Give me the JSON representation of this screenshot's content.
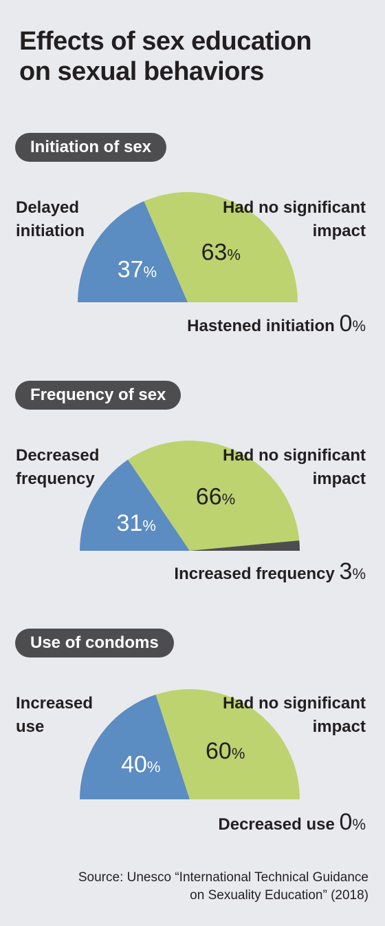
{
  "title_line1": "Effects of sex education",
  "title_line2": "on sexual behaviors",
  "colors": {
    "positive": "#5b8cc2",
    "no_impact": "#bdd370",
    "negative": "#4d4d4f",
    "pill_bg": "#4d4d4f"
  },
  "chart_data": [
    {
      "type": "pie",
      "style": "half-pie",
      "title": "Initiation of sex",
      "slices": [
        {
          "label_line1": "Delayed",
          "label_line2": "initiation",
          "value": 37,
          "value_label": "37",
          "color": "#5b8cc2"
        },
        {
          "label_line1": "Had no significant",
          "label_line2": "impact",
          "value": 63,
          "value_label": "63",
          "color": "#bdd370"
        },
        {
          "label_line1": "Hastened initiation",
          "label_line2": "",
          "value": 0,
          "value_label": "0",
          "color": "#4d4d4f"
        }
      ]
    },
    {
      "type": "pie",
      "style": "half-pie",
      "title": "Frequency of sex",
      "slices": [
        {
          "label_line1": "Decreased",
          "label_line2": "frequency",
          "value": 31,
          "value_label": "31",
          "color": "#5b8cc2"
        },
        {
          "label_line1": "Had no significant",
          "label_line2": "impact",
          "value": 66,
          "value_label": "66",
          "color": "#bdd370"
        },
        {
          "label_line1": "Increased frequency",
          "label_line2": "",
          "value": 3,
          "value_label": "3",
          "color": "#4d4d4f"
        }
      ]
    },
    {
      "type": "pie",
      "style": "half-pie",
      "title": "Use of condoms",
      "slices": [
        {
          "label_line1": "Increased",
          "label_line2": "use",
          "value": 40,
          "value_label": "40",
          "color": "#5b8cc2"
        },
        {
          "label_line1": "Had no significant",
          "label_line2": "impact",
          "value": 60,
          "value_label": "60",
          "color": "#bdd370"
        },
        {
          "label_line1": "Decreased use",
          "label_line2": "",
          "value": 0,
          "value_label": "0",
          "color": "#4d4d4f"
        }
      ]
    }
  ],
  "percent_sign": "%",
  "source_line1": "Source: Unesco “International Technical Guidance",
  "source_line2": "on Sexuality Education” (2018)"
}
